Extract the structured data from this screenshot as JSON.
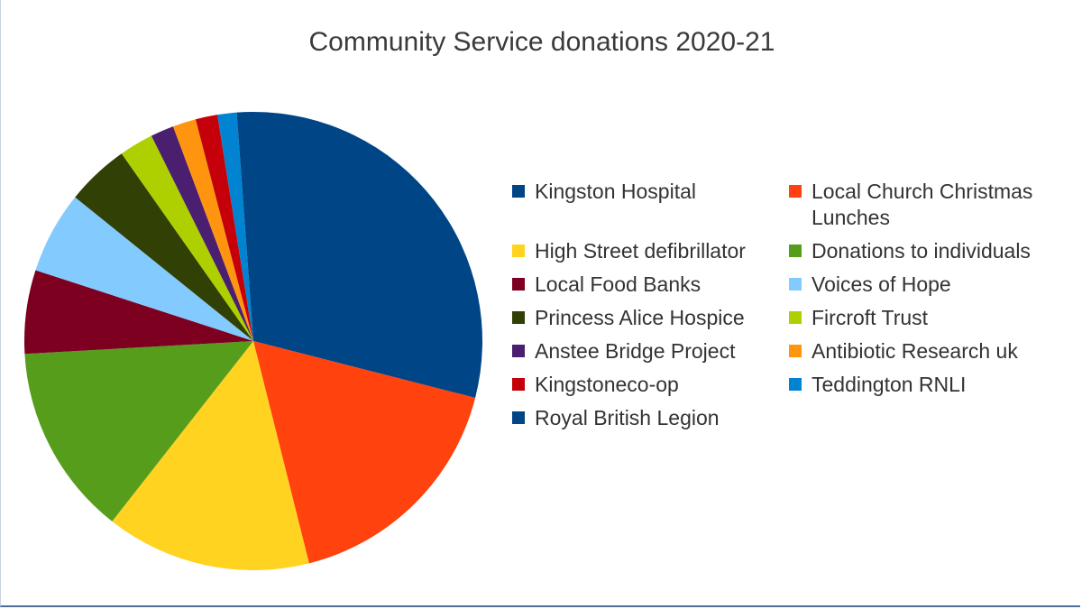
{
  "chart_data": {
    "type": "pie",
    "title": "Community Service donations 2020-21",
    "legend_position": "right",
    "slices": [
      {
        "label": "Kingston Hospital",
        "value": 30.0,
        "color": "#004586"
      },
      {
        "label": "Local Church Christmas Lunches",
        "value": 17.7,
        "color": "#ff420e"
      },
      {
        "label": "High Street defibrillator",
        "value": 15.0,
        "color": "#ffd320"
      },
      {
        "label": "Donations to individuals",
        "value": 14.0,
        "color": "#579d1c"
      },
      {
        "label": "Local Food Banks",
        "value": 6.1,
        "color": "#7e0021"
      },
      {
        "label": "Voices of Hope",
        "value": 6.0,
        "color": "#83caff"
      },
      {
        "label": "Princess Alice Hospice",
        "value": 4.6,
        "color": "#314004"
      },
      {
        "label": "Fircroft Trust",
        "value": 2.5,
        "color": "#aecf00"
      },
      {
        "label": "Anstee Bridge Project",
        "value": 1.7,
        "color": "#4b1f6f"
      },
      {
        "label": "Antibiotic Research uk",
        "value": 1.7,
        "color": "#ff950e"
      },
      {
        "label": "Kingstoneco-op",
        "value": 1.6,
        "color": "#c5000b"
      },
      {
        "label": "Teddington RNLI",
        "value": 1.4,
        "color": "#0084d1"
      },
      {
        "label": "Royal British Legion",
        "value": 1.2,
        "color": "#004586"
      }
    ]
  }
}
